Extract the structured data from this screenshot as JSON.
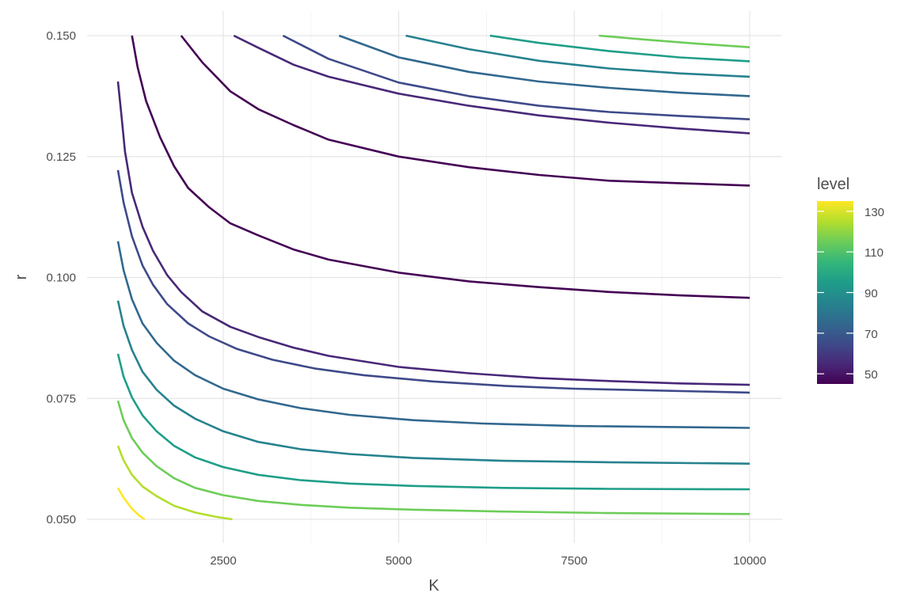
{
  "chart_data": {
    "type": "line",
    "subtype": "contour",
    "title": "",
    "xlabel": "K",
    "ylabel": "r",
    "xlim": [
      1000,
      10000
    ],
    "ylim": [
      0.05,
      0.15
    ],
    "x_ticks": [
      2500,
      5000,
      7500,
      10000
    ],
    "x_tick_labels": [
      "2500",
      "5000",
      "7500",
      "10000"
    ],
    "y_ticks": [
      0.05,
      0.075,
      0.1,
      0.125,
      0.15
    ],
    "y_tick_labels": [
      "0.050",
      "0.075",
      "0.100",
      "0.125",
      "0.150"
    ],
    "grid": true,
    "legend": {
      "title": "level",
      "position": "right",
      "type": "colorbar",
      "range": [
        45,
        135
      ],
      "ticks": [
        50,
        70,
        90,
        110,
        130
      ],
      "tick_labels": [
        "50",
        "70",
        "90",
        "110",
        "130"
      ],
      "colormap": "viridis",
      "colors": [
        "#440154",
        "#482878",
        "#3E4A89",
        "#31688E",
        "#26828E",
        "#1F9E89",
        "#35B779",
        "#6DCD59",
        "#B4DE2C",
        "#FDE725"
      ]
    },
    "series": [
      {
        "level": 50,
        "color": "#440154",
        "points": [
          [
            1900,
            0.15
          ],
          [
            2200,
            0.1445
          ],
          [
            2600,
            0.1385
          ],
          [
            3000,
            0.1348
          ],
          [
            3500,
            0.1315
          ],
          [
            4000,
            0.1285
          ],
          [
            5000,
            0.125
          ],
          [
            6000,
            0.1228
          ],
          [
            7000,
            0.1212
          ],
          [
            8000,
            0.12
          ],
          [
            9000,
            0.1195
          ],
          [
            10000,
            0.119
          ]
        ]
      },
      {
        "level": 50,
        "color": "#440154",
        "points": [
          [
            1200,
            0.15
          ],
          [
            1280,
            0.1435
          ],
          [
            1400,
            0.1365
          ],
          [
            1600,
            0.129
          ],
          [
            1800,
            0.123
          ],
          [
            2000,
            0.1185
          ],
          [
            2300,
            0.1145
          ],
          [
            2600,
            0.1112
          ],
          [
            3000,
            0.1087
          ],
          [
            3500,
            0.1058
          ],
          [
            4000,
            0.1037
          ],
          [
            5000,
            0.101
          ],
          [
            6000,
            0.0992
          ],
          [
            7000,
            0.098
          ],
          [
            8000,
            0.097
          ],
          [
            9000,
            0.0963
          ],
          [
            10000,
            0.0958
          ]
        ]
      },
      {
        "level": 60,
        "color": "#482878",
        "points": [
          [
            2650,
            0.15
          ],
          [
            3000,
            0.1475
          ],
          [
            3500,
            0.144
          ],
          [
            4000,
            0.1415
          ],
          [
            5000,
            0.138
          ],
          [
            6000,
            0.1355
          ],
          [
            7000,
            0.1335
          ],
          [
            8000,
            0.132
          ],
          [
            9000,
            0.1308
          ],
          [
            10000,
            0.1298
          ]
        ]
      },
      {
        "level": 60,
        "color": "#482878",
        "points": [
          [
            1000,
            0.1405
          ],
          [
            1050,
            0.1335
          ],
          [
            1100,
            0.126
          ],
          [
            1200,
            0.1175
          ],
          [
            1350,
            0.1105
          ],
          [
            1500,
            0.1055
          ],
          [
            1700,
            0.1005
          ],
          [
            1900,
            0.097
          ],
          [
            2200,
            0.093
          ],
          [
            2600,
            0.0898
          ],
          [
            3000,
            0.0877
          ],
          [
            3500,
            0.0855
          ],
          [
            4000,
            0.0838
          ],
          [
            5000,
            0.0815
          ],
          [
            6000,
            0.0802
          ],
          [
            7000,
            0.0792
          ],
          [
            8000,
            0.0786
          ],
          [
            9000,
            0.0781
          ],
          [
            10000,
            0.0778
          ]
        ]
      },
      {
        "level": 70,
        "color": "#3E4A89",
        "points": [
          [
            3350,
            0.15
          ],
          [
            4000,
            0.1452
          ],
          [
            5000,
            0.1403
          ],
          [
            6000,
            0.1375
          ],
          [
            7000,
            0.1355
          ],
          [
            8000,
            0.1342
          ],
          [
            9000,
            0.1334
          ],
          [
            10000,
            0.1327
          ]
        ]
      },
      {
        "level": 70,
        "color": "#3E4A89",
        "points": [
          [
            1000,
            0.1222
          ],
          [
            1080,
            0.1155
          ],
          [
            1200,
            0.1085
          ],
          [
            1350,
            0.1025
          ],
          [
            1500,
            0.0985
          ],
          [
            1700,
            0.0945
          ],
          [
            2000,
            0.0905
          ],
          [
            2300,
            0.0878
          ],
          [
            2700,
            0.0852
          ],
          [
            3200,
            0.083
          ],
          [
            3800,
            0.0812
          ],
          [
            4500,
            0.0798
          ],
          [
            5500,
            0.0785
          ],
          [
            6500,
            0.0776
          ],
          [
            7500,
            0.077
          ],
          [
            8500,
            0.0767
          ],
          [
            10000,
            0.0762
          ]
        ]
      },
      {
        "level": 80,
        "color": "#31688E",
        "points": [
          [
            4150,
            0.15
          ],
          [
            5000,
            0.1455
          ],
          [
            6000,
            0.1425
          ],
          [
            7000,
            0.1405
          ],
          [
            8000,
            0.1392
          ],
          [
            9000,
            0.1382
          ],
          [
            10000,
            0.1375
          ]
        ]
      },
      {
        "level": 80,
        "color": "#31688E",
        "points": [
          [
            1000,
            0.1075
          ],
          [
            1080,
            0.1015
          ],
          [
            1200,
            0.0955
          ],
          [
            1350,
            0.0905
          ],
          [
            1550,
            0.0865
          ],
          [
            1800,
            0.0828
          ],
          [
            2100,
            0.0798
          ],
          [
            2500,
            0.077
          ],
          [
            3000,
            0.0748
          ],
          [
            3600,
            0.073
          ],
          [
            4300,
            0.0716
          ],
          [
            5200,
            0.0705
          ],
          [
            6200,
            0.0698
          ],
          [
            7500,
            0.0693
          ],
          [
            8800,
            0.0691
          ],
          [
            10000,
            0.0689
          ]
        ]
      },
      {
        "level": 90,
        "color": "#26828E",
        "points": [
          [
            5100,
            0.15
          ],
          [
            6000,
            0.1472
          ],
          [
            7000,
            0.1448
          ],
          [
            8000,
            0.1432
          ],
          [
            9000,
            0.1422
          ],
          [
            10000,
            0.1415
          ]
        ]
      },
      {
        "level": 90,
        "color": "#26828E",
        "points": [
          [
            1000,
            0.0952
          ],
          [
            1080,
            0.09
          ],
          [
            1200,
            0.085
          ],
          [
            1350,
            0.0805
          ],
          [
            1550,
            0.0768
          ],
          [
            1800,
            0.0735
          ],
          [
            2100,
            0.0708
          ],
          [
            2500,
            0.0682
          ],
          [
            3000,
            0.066
          ],
          [
            3600,
            0.0645
          ],
          [
            4300,
            0.0635
          ],
          [
            5200,
            0.0627
          ],
          [
            6500,
            0.0621
          ],
          [
            8000,
            0.0618
          ],
          [
            10000,
            0.0615
          ]
        ]
      },
      {
        "level": 100,
        "color": "#1F9E89",
        "points": [
          [
            6300,
            0.15
          ],
          [
            7000,
            0.1485
          ],
          [
            8000,
            0.1468
          ],
          [
            9000,
            0.1455
          ],
          [
            10000,
            0.1447
          ]
        ]
      },
      {
        "level": 100,
        "color": "#1F9E89",
        "points": [
          [
            1000,
            0.0842
          ],
          [
            1080,
            0.0795
          ],
          [
            1200,
            0.0752
          ],
          [
            1350,
            0.0715
          ],
          [
            1550,
            0.0682
          ],
          [
            1800,
            0.0652
          ],
          [
            2100,
            0.0628
          ],
          [
            2500,
            0.0608
          ],
          [
            3000,
            0.0592
          ],
          [
            3600,
            0.0581
          ],
          [
            4300,
            0.0574
          ],
          [
            5200,
            0.0569
          ],
          [
            6500,
            0.0565
          ],
          [
            8000,
            0.0563
          ],
          [
            10000,
            0.0562
          ]
        ]
      },
      {
        "level": 110,
        "color": "#6DCD59",
        "points": [
          [
            7850,
            0.15
          ],
          [
            8500,
            0.1492
          ],
          [
            9200,
            0.1484
          ],
          [
            10000,
            0.1476
          ]
        ]
      },
      {
        "level": 110,
        "color": "#6DCD59",
        "points": [
          [
            1000,
            0.0745
          ],
          [
            1080,
            0.0705
          ],
          [
            1200,
            0.0668
          ],
          [
            1350,
            0.0638
          ],
          [
            1550,
            0.061
          ],
          [
            1800,
            0.0585
          ],
          [
            2100,
            0.0565
          ],
          [
            2500,
            0.055
          ],
          [
            3000,
            0.0538
          ],
          [
            3600,
            0.053
          ],
          [
            4300,
            0.0524
          ],
          [
            5200,
            0.052
          ],
          [
            6500,
            0.0516
          ],
          [
            8000,
            0.0513
          ],
          [
            10000,
            0.0511
          ]
        ]
      },
      {
        "level": 120,
        "color": "#B4DE2C",
        "points": [
          [
            1000,
            0.0652
          ],
          [
            1080,
            0.0622
          ],
          [
            1200,
            0.0592
          ],
          [
            1350,
            0.0568
          ],
          [
            1550,
            0.0548
          ],
          [
            1800,
            0.0528
          ],
          [
            2100,
            0.0514
          ],
          [
            2400,
            0.0505
          ],
          [
            2630,
            0.05
          ]
        ]
      },
      {
        "level": 130,
        "color": "#FDE725",
        "points": [
          [
            1000,
            0.0565
          ],
          [
            1080,
            0.0545
          ],
          [
            1200,
            0.0522
          ],
          [
            1300,
            0.0508
          ],
          [
            1380,
            0.05
          ]
        ]
      }
    ]
  }
}
